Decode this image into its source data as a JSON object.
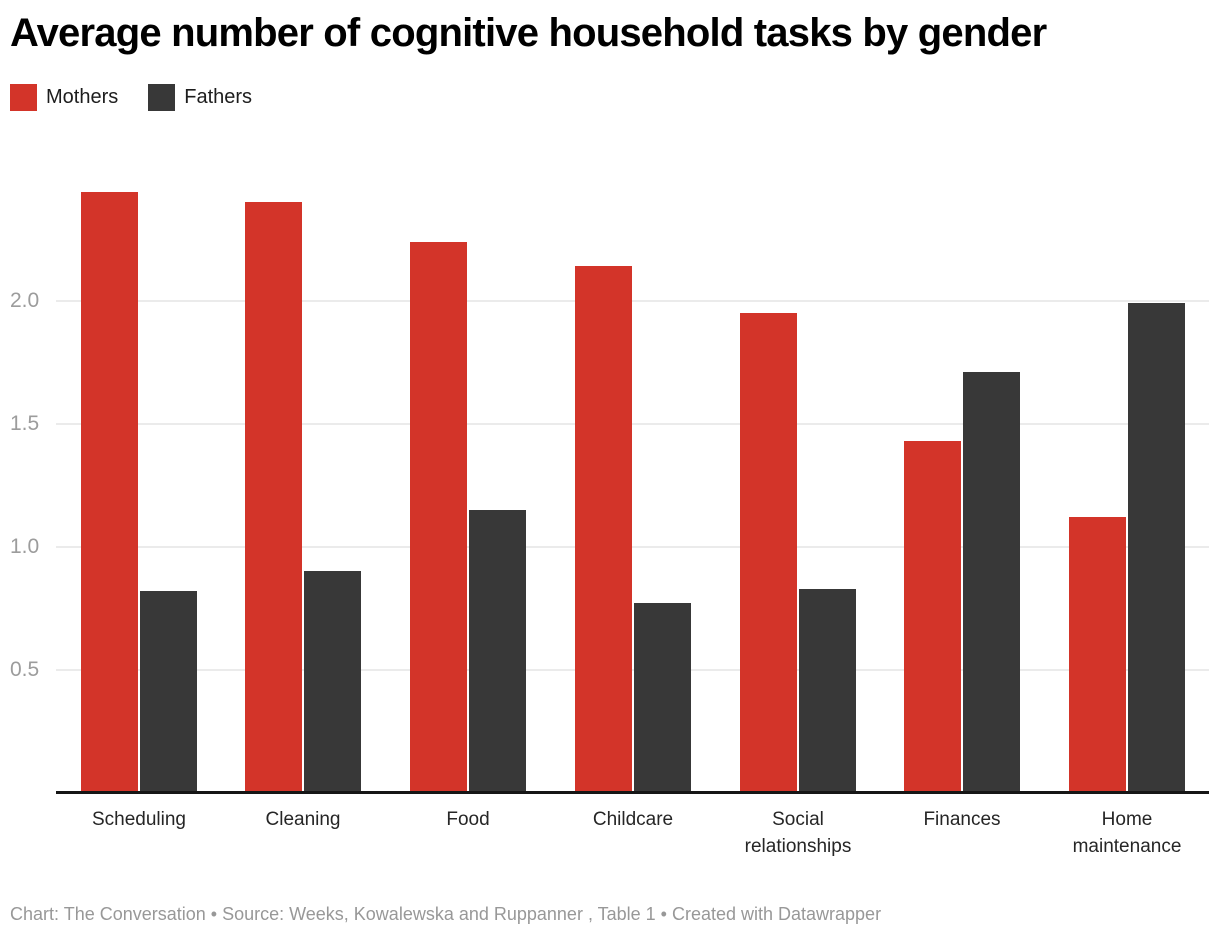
{
  "title": "Average number of cognitive household tasks by gender",
  "footer": "Chart: The Conversation • Source: Weeks, Kowalewska and Ruppanner , Table 1 • Created with Datawrapper",
  "colors": {
    "mothers": "#d33429",
    "fathers": "#383838",
    "gridline": "#ebebeb",
    "axis_line": "#161616",
    "ytick_label": "#9c9c9c",
    "xtick_label": "#262626",
    "footer_text": "#989898",
    "background": "#ffffff"
  },
  "chart_data": {
    "type": "bar",
    "title": "Average number of cognitive household tasks by gender",
    "categories": [
      "Scheduling",
      "Cleaning",
      "Food",
      "Childcare",
      "Social relationships",
      "Finances",
      "Home maintenance"
    ],
    "series": [
      {
        "name": "Mothers",
        "color": "#d33429",
        "values": [
          2.44,
          2.4,
          2.24,
          2.14,
          1.95,
          1.43,
          1.12
        ]
      },
      {
        "name": "Fathers",
        "color": "#383838",
        "values": [
          0.82,
          0.9,
          1.15,
          0.77,
          0.83,
          1.71,
          1.99
        ]
      }
    ],
    "xlabel": "",
    "ylabel": "",
    "ylim": [
      0,
      2.44
    ],
    "yticks": [
      0.5,
      1.0,
      1.5,
      2.0
    ],
    "ytick_labels": [
      "0.5",
      "1.0",
      "1.5",
      "2.0"
    ],
    "grid": "horizontal",
    "legend_position": "top-left"
  }
}
